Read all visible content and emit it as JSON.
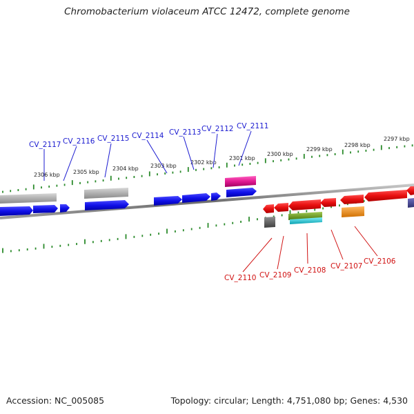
{
  "title": "Chromobacterium violaceum ATCC 12472, complete genome",
  "footer": {
    "accession": "Accession: NC_005085",
    "stats": "Topology: circular; Length: 4,751,080 bp; Genes: 4,530"
  },
  "colors": {
    "backbone": "#6e6e6e",
    "tick": "#2a8a2a",
    "label_top": "#1a1ad0",
    "label_bottom": "#d01010",
    "gene_blue": "#1010e8",
    "gene_red": "#e81010",
    "gene_gray": "#a8a8a8",
    "gene_pink": "#e01890",
    "gene_dark_gray": "#606060",
    "gene_olive": "#6a9a28",
    "gene_cyan": "#18c8d8",
    "gene_orange": "#f08c18",
    "gene_navy": "#404090"
  },
  "ticks_kbp": [
    {
      "label": "2306 kbp"
    },
    {
      "label": "2305 kbp"
    },
    {
      "label": "2304 kbp"
    },
    {
      "label": "2303 kbp"
    },
    {
      "label": "2302 kbp"
    },
    {
      "label": "2301 kbp"
    },
    {
      "label": "2300 kbp"
    },
    {
      "label": "2299 kbp"
    },
    {
      "label": "2298 kbp"
    },
    {
      "label": "2297 kbp"
    }
  ],
  "gene_labels_top": [
    "CV_2117",
    "CV_2116",
    "CV_2115",
    "CV_2114",
    "CV_2113",
    "CV_2112",
    "CV_2111"
  ],
  "gene_labels_bottom": [
    "CV_2110",
    "CV_2109",
    "CV_2108",
    "CV_2107",
    "CV_2106"
  ]
}
